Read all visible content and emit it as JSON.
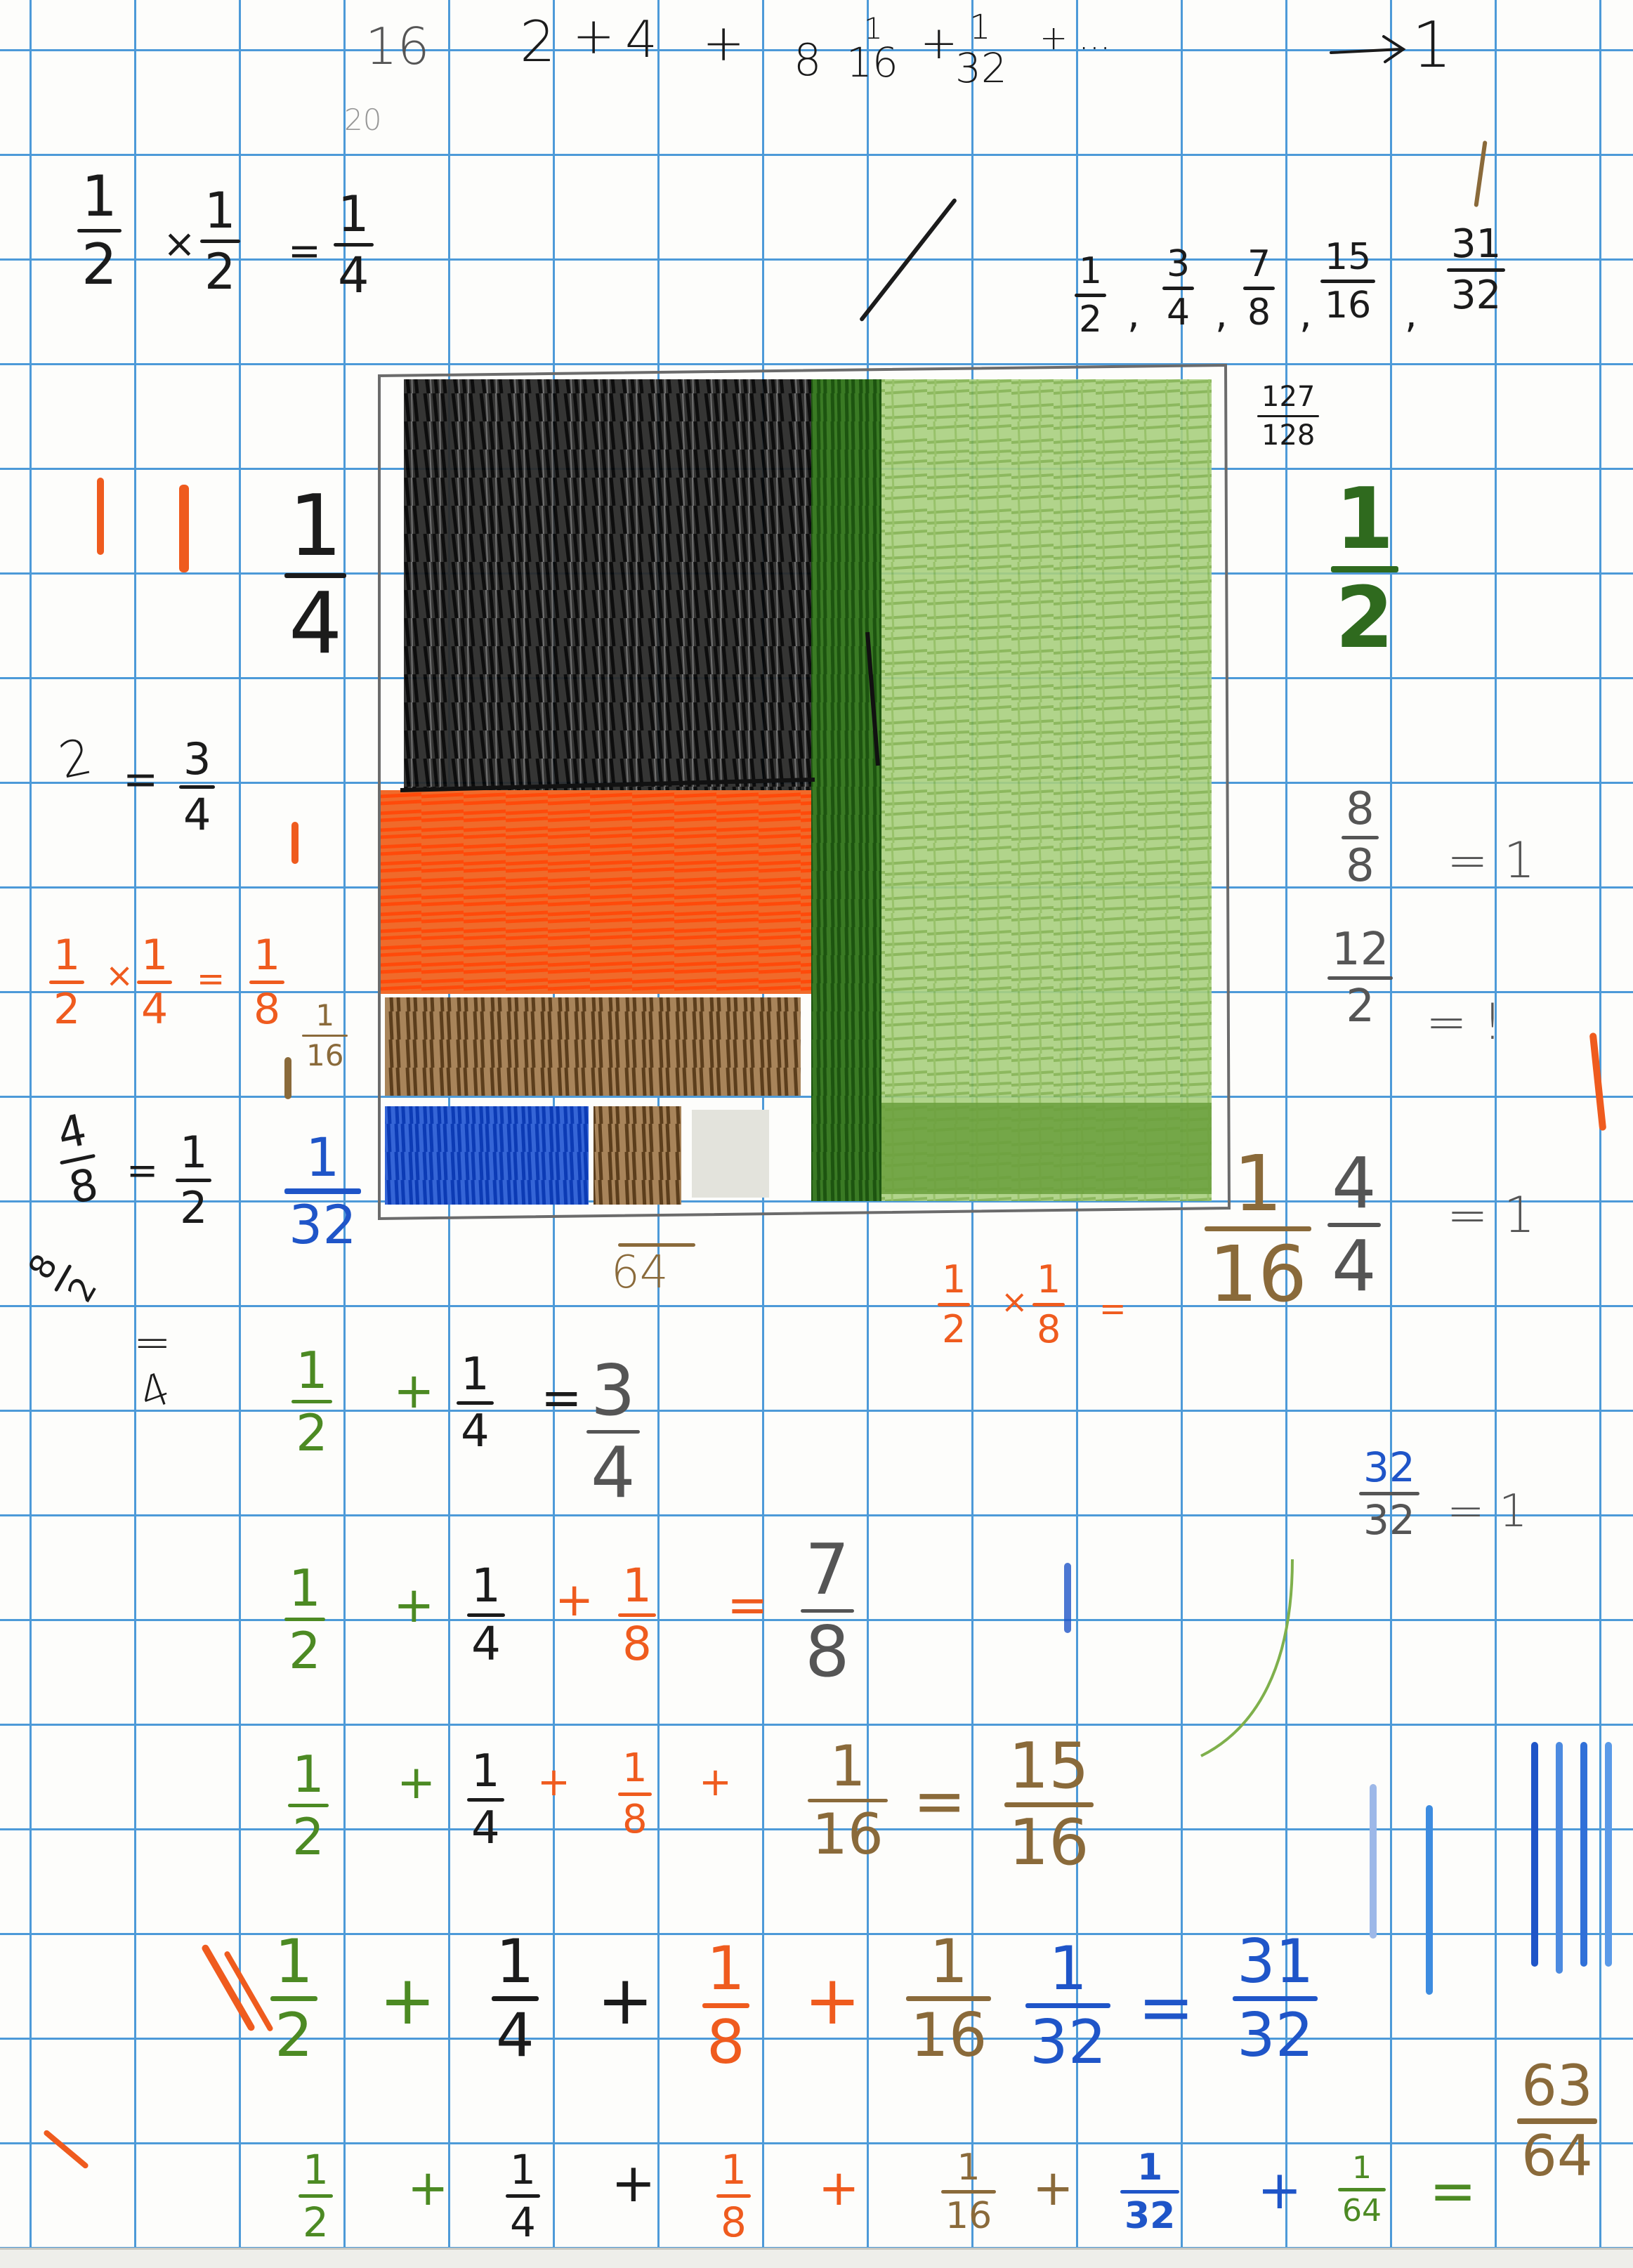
{
  "colors": {
    "grid_line": "#4d9ad8",
    "paper": "#fdfdfb",
    "pencil": "#1b1b1b",
    "green_crayon": "#4c8a23",
    "light_green_crayon": "#9cc66a",
    "dark_green_crayon": "#2f6a1e",
    "orange_crayon": "#ef5b1e",
    "brown_crayon": "#8a6a3a",
    "blue_crayon": "#1f55c8"
  },
  "top_series": {
    "scribble_16": "16",
    "scribble_20": "20",
    "terms": [
      "2",
      "1",
      "4",
      "8",
      "16",
      "1",
      "32"
    ],
    "tail": "+ ...",
    "arrow_target": "1"
  },
  "partial_sums": {
    "num": [
      "1",
      "3",
      "7",
      "15",
      "31"
    ],
    "den": [
      "2",
      "4",
      "8",
      "16",
      "32"
    ]
  },
  "side_fraction": {
    "num": "127",
    "den": "128"
  },
  "half_times_half": {
    "a_num": "1",
    "a_den": "2",
    "b_num": "1",
    "b_den": "2",
    "r_num": "1",
    "r_den": "4"
  },
  "quarter_label": {
    "num": "1",
    "den": "4"
  },
  "half_label": {
    "num": "1",
    "den": "2"
  },
  "two_quarters": {
    "lhs": "2",
    "rhs_num": "3",
    "rhs_den": "4"
  },
  "orange_mult": {
    "a_num": "1",
    "a_den": "2",
    "b_num": "1",
    "b_den": "4",
    "r_num": "1",
    "r_den": "8"
  },
  "sixteenth_small": {
    "num": "1",
    "den": "16"
  },
  "eight_eighths": {
    "num": "8",
    "den": "8",
    "eq": "= 1"
  },
  "twelve_halves": {
    "num": "12",
    "den": "2",
    "eq": "= !"
  },
  "four_eighths": {
    "num": "4",
    "den": "8",
    "rhs_num": "1",
    "rhs_den": "2"
  },
  "thirty_second_label": {
    "num": "1",
    "den": "32"
  },
  "sixty_fourth_label": {
    "den": "64"
  },
  "eighth_over_two": {
    "num": "8",
    "den": "2",
    "rhs": "4"
  },
  "mult_half_eighth": {
    "a_num": "1",
    "a_den": "2",
    "b_num": "1",
    "b_den": "8",
    "r_num": "1",
    "r_den": "16"
  },
  "four_fourths": {
    "num": "4",
    "den": "4",
    "eq": "= 1"
  },
  "thirty_two_thirty_two": {
    "num": "32",
    "den": "32",
    "eq": "= 1"
  },
  "row1": {
    "t1_num": "1",
    "t1_den": "2",
    "t2_num": "1",
    "t2_den": "4",
    "r_num": "3",
    "r_den": "4"
  },
  "row2": {
    "t1_num": "1",
    "t1_den": "2",
    "t2_num": "1",
    "t2_den": "4",
    "t3_num": "1",
    "t3_den": "8",
    "r_num": "7",
    "r_den": "8"
  },
  "row3": {
    "t1_num": "1",
    "t1_den": "2",
    "t2_num": "1",
    "t2_den": "4",
    "t3_num": "1",
    "t3_den": "8",
    "t4_num": "1",
    "t4_den": "16",
    "r_num": "15",
    "r_den": "16"
  },
  "row4": {
    "t1_num": "1",
    "t1_den": "2",
    "t2_num": "1",
    "t2_den": "4",
    "t3_num": "1",
    "t3_den": "8",
    "t4_num": "1",
    "t4_den": "16",
    "t5_num": "1",
    "t5_den": "32",
    "r_num": "31",
    "r_den": "32"
  },
  "row5": {
    "t1_num": "1",
    "t1_den": "2",
    "t2_num": "1",
    "t2_den": "4",
    "t3_num": "1",
    "t3_den": "8",
    "t4_num": "1",
    "t4_den": "16",
    "t5_num": "1",
    "t5_den": "32",
    "t6_num": "1",
    "t6_den": "64",
    "r_num": "63",
    "r_den": "64"
  },
  "signs": {
    "plus": "+",
    "times": "×",
    "equals": "=",
    "comma": ","
  }
}
